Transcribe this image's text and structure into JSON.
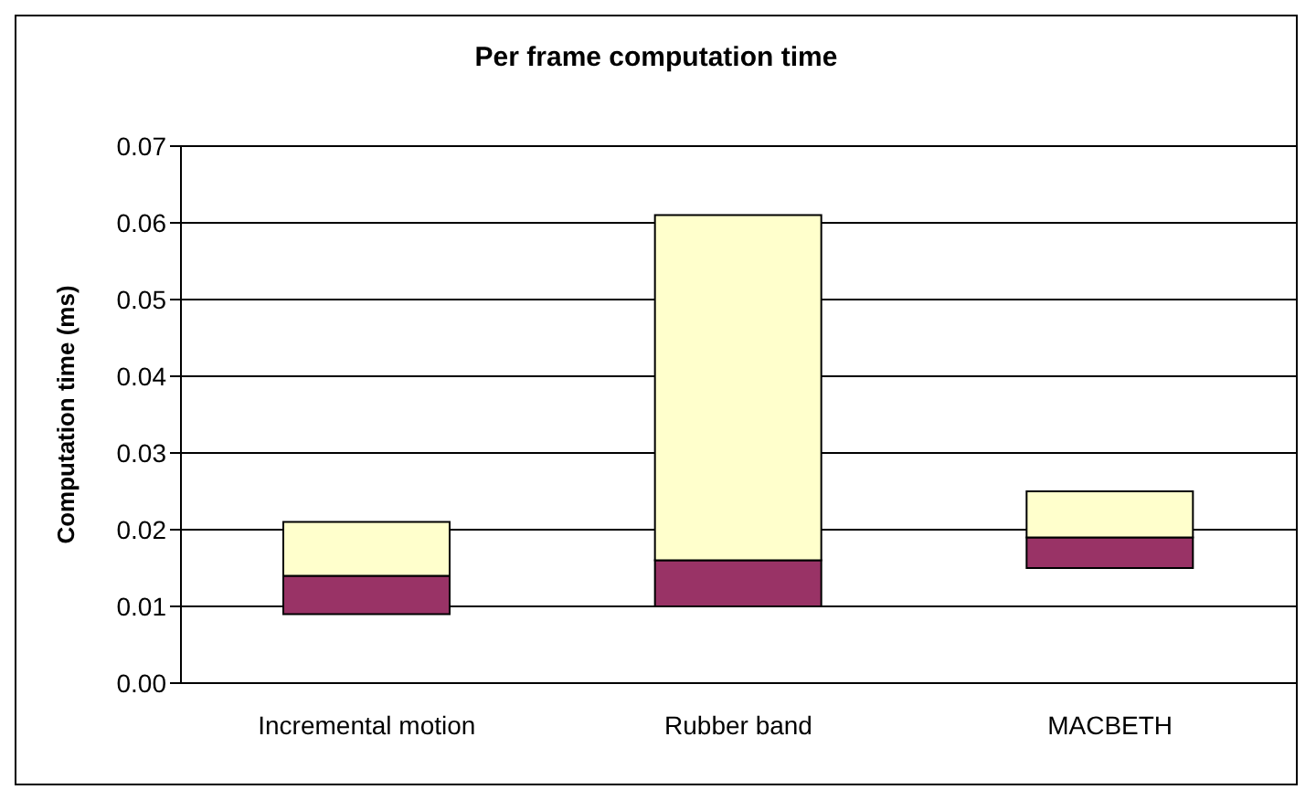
{
  "chart_data": {
    "type": "bar",
    "title": "Per frame computation time",
    "ylabel": "Computation time (ms)",
    "categories": [
      "Incremental motion",
      "Rubber band",
      "MACBETH"
    ],
    "series": [
      {
        "color": "#993366",
        "base": [
          0.009,
          0.01,
          0.015
        ],
        "values": [
          0.005,
          0.006,
          0.004
        ]
      },
      {
        "color": "#ffffcc",
        "base": [
          0.014,
          0.016,
          0.019
        ],
        "values": [
          0.007,
          0.045,
          0.006
        ]
      }
    ],
    "ylim": [
      0,
      0.07
    ],
    "yticks": [
      {
        "value": 0,
        "label": "0.00"
      },
      {
        "value": 0.01,
        "label": "0.01"
      },
      {
        "value": 0.02,
        "label": "0.02"
      },
      {
        "value": 0.03,
        "label": "0.03"
      },
      {
        "value": 0.04,
        "label": "0.04"
      },
      {
        "value": 0.05,
        "label": "0.05"
      },
      {
        "value": 0.06,
        "label": "0.06"
      },
      {
        "value": 0.07,
        "label": "0.07"
      }
    ],
    "grid": "y",
    "legend": false
  }
}
